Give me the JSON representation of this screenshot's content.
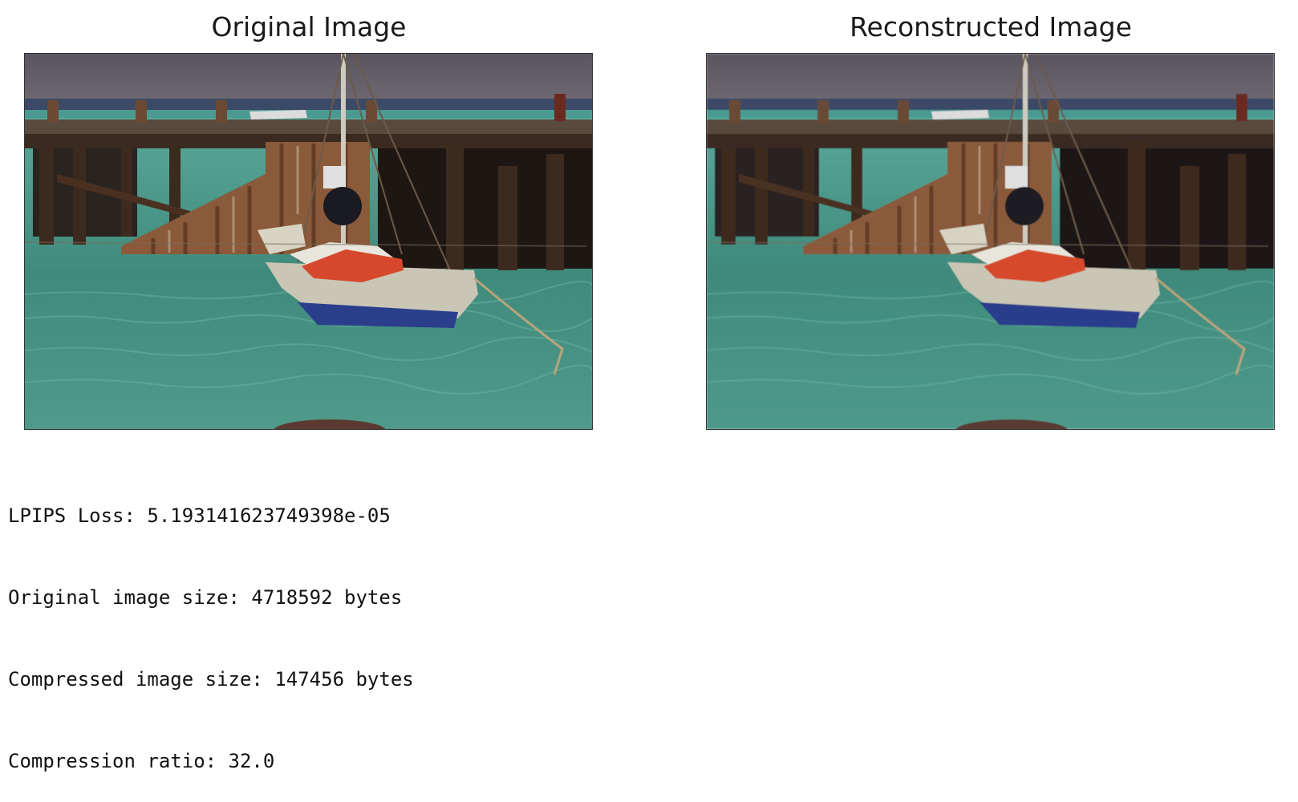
{
  "figure": {
    "left_title": "Original Image",
    "right_title": "Reconstructed Image",
    "left_image_icon": "harbor-photo",
    "right_image_icon": "harbor-photo",
    "colors": {
      "sky": "#5a5560",
      "water": "#3f8a7c",
      "pier": "#3a2a20",
      "rust": "#8a5a3a",
      "sail": "#d6482c",
      "hull": "#c9c6b6",
      "keel": "#2a3e8c"
    }
  },
  "output": {
    "lines": [
      "LPIPS Loss: 5.193141623749398e-05",
      "Original image size: 4718592 bytes",
      "Compressed image size: 147456 bytes",
      "Compression ratio: 32.0"
    ]
  }
}
